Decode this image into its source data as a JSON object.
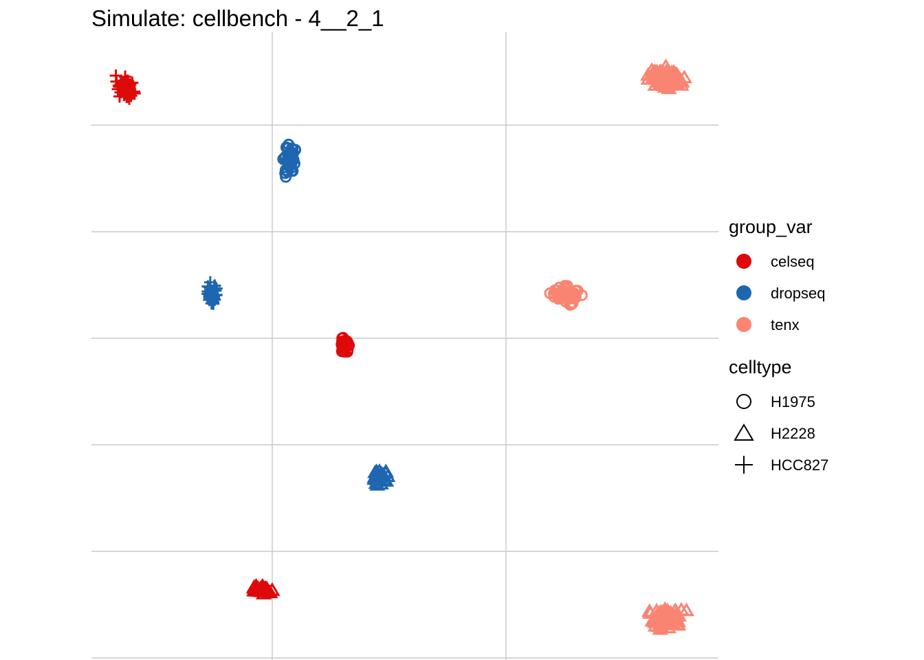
{
  "title": "Simulate: cellbench - 4__2_1",
  "colors": {
    "celseq": "#DE0A0A",
    "dropseq": "#1F66B0",
    "tenx": "#FA8472",
    "grid": "#C8C8C8"
  },
  "chart_data": {
    "type": "scatter",
    "title": "Simulate: cellbench - 4__2_1",
    "xlabel": "",
    "ylabel": "",
    "grid": true,
    "legend_placement": "right",
    "xlim": [
      0,
      1
    ],
    "ylim": [
      0,
      1
    ],
    "legends": [
      {
        "title": "group_var",
        "entries": [
          "celseq",
          "dropseq",
          "tenx"
        ],
        "icon": "filled-circle"
      },
      {
        "title": "celltype",
        "entries": [
          "H1975",
          "H2228",
          "HCC827"
        ],
        "icon": [
          "open-circle",
          "open-triangle",
          "plus"
        ]
      }
    ],
    "clusters": [
      {
        "group_var": "celseq",
        "celltype": "HCC827",
        "x": 0.054,
        "y": 0.912,
        "spread_x": 0.018,
        "spread_y": 0.022,
        "n": 60
      },
      {
        "group_var": "tenx",
        "celltype": "H2228",
        "x": 0.918,
        "y": 0.927,
        "spread_x": 0.04,
        "spread_y": 0.022,
        "n": 80
      },
      {
        "group_var": "dropseq",
        "celltype": "H1975",
        "x": 0.316,
        "y": 0.797,
        "spread_x": 0.012,
        "spread_y": 0.035,
        "n": 40
      },
      {
        "group_var": "dropseq",
        "celltype": "HCC827",
        "x": 0.192,
        "y": 0.583,
        "spread_x": 0.012,
        "spread_y": 0.024,
        "n": 40
      },
      {
        "group_var": "tenx",
        "celltype": "H1975",
        "x": 0.757,
        "y": 0.583,
        "spread_x": 0.032,
        "spread_y": 0.02,
        "n": 60
      },
      {
        "group_var": "celseq",
        "celltype": "H1975",
        "x": 0.403,
        "y": 0.502,
        "spread_x": 0.01,
        "spread_y": 0.018,
        "n": 40
      },
      {
        "group_var": "dropseq",
        "celltype": "H2228",
        "x": 0.46,
        "y": 0.29,
        "spread_x": 0.016,
        "spread_y": 0.015,
        "n": 30
      },
      {
        "group_var": "celseq",
        "celltype": "H2228",
        "x": 0.274,
        "y": 0.112,
        "spread_x": 0.022,
        "spread_y": 0.008,
        "n": 40
      },
      {
        "group_var": "tenx",
        "celltype": "H2228",
        "x": 0.917,
        "y": 0.067,
        "spread_x": 0.035,
        "spread_y": 0.026,
        "n": 80
      }
    ]
  }
}
